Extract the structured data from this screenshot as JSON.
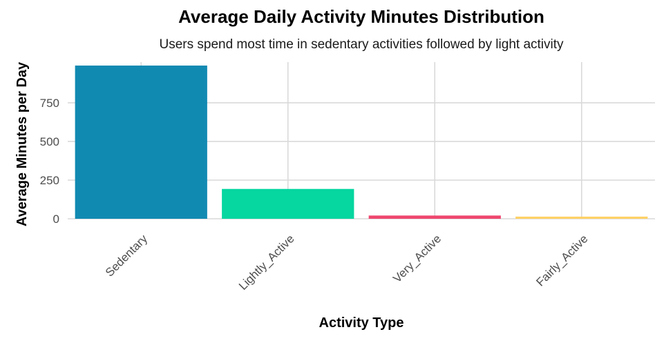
{
  "chart_data": {
    "type": "bar",
    "title": "Average Daily Activity Minutes Distribution",
    "subtitle": "Users spend most time in sedentary activities followed by light activity",
    "xlabel": "Activity Type",
    "ylabel": "Average Minutes per Day",
    "categories": [
      "Sedentary",
      "Lightly_Active",
      "Very_Active",
      "Fairly_Active"
    ],
    "values": [
      991,
      193,
      21,
      14
    ],
    "colors": [
      "#118AB2",
      "#06D6A0",
      "#EF476F",
      "#FFD166"
    ],
    "yticks": [
      0,
      250,
      500,
      750
    ],
    "ylim": [
      0,
      1040
    ],
    "grid": true,
    "legend": "none"
  }
}
